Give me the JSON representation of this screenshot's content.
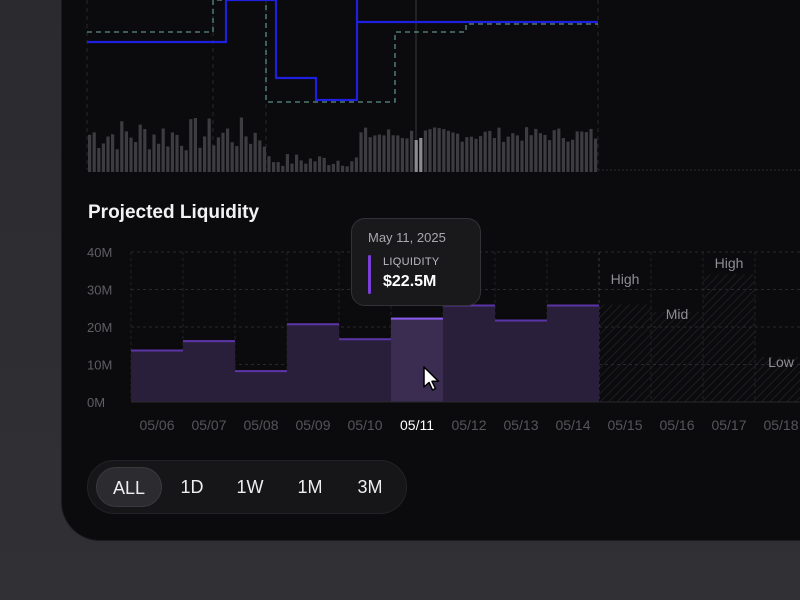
{
  "section_title": "Projected Liquidity",
  "tooltip": {
    "date": "May 11, 2025",
    "label": "LIQUIDITY",
    "value": "$22.5M"
  },
  "range_selector": {
    "options": [
      "ALL",
      "1D",
      "1W",
      "1M",
      "3M"
    ],
    "active": "ALL"
  },
  "chart_data": {
    "type": "bar",
    "title": "Projected Liquidity",
    "categories": [
      "05/06",
      "05/07",
      "05/08",
      "05/09",
      "05/10",
      "05/11",
      "05/12",
      "05/13",
      "05/14",
      "05/15",
      "05/16",
      "05/17",
      "05/18"
    ],
    "values": [
      14,
      16.5,
      8.5,
      21,
      17,
      22.5,
      26,
      22,
      26,
      null,
      null,
      null,
      null
    ],
    "highlighted_category": "05/11",
    "y_ticks": [
      "0M",
      "10M",
      "20M",
      "30M",
      "40M"
    ],
    "ylim": [
      0,
      40
    ],
    "projection_labels": [
      {
        "category": "05/15",
        "label": "High"
      },
      {
        "category": "05/16",
        "label": "Mid"
      },
      {
        "category": "05/17",
        "label": "High"
      },
      {
        "category": "05/18",
        "label": "Low"
      }
    ],
    "grid": true,
    "bar_color": "#2a1f3a",
    "bar_top_color": "#5b34a8",
    "highlight_color": "#3b2c52",
    "highlight_top_color": "#8a5cf0"
  }
}
